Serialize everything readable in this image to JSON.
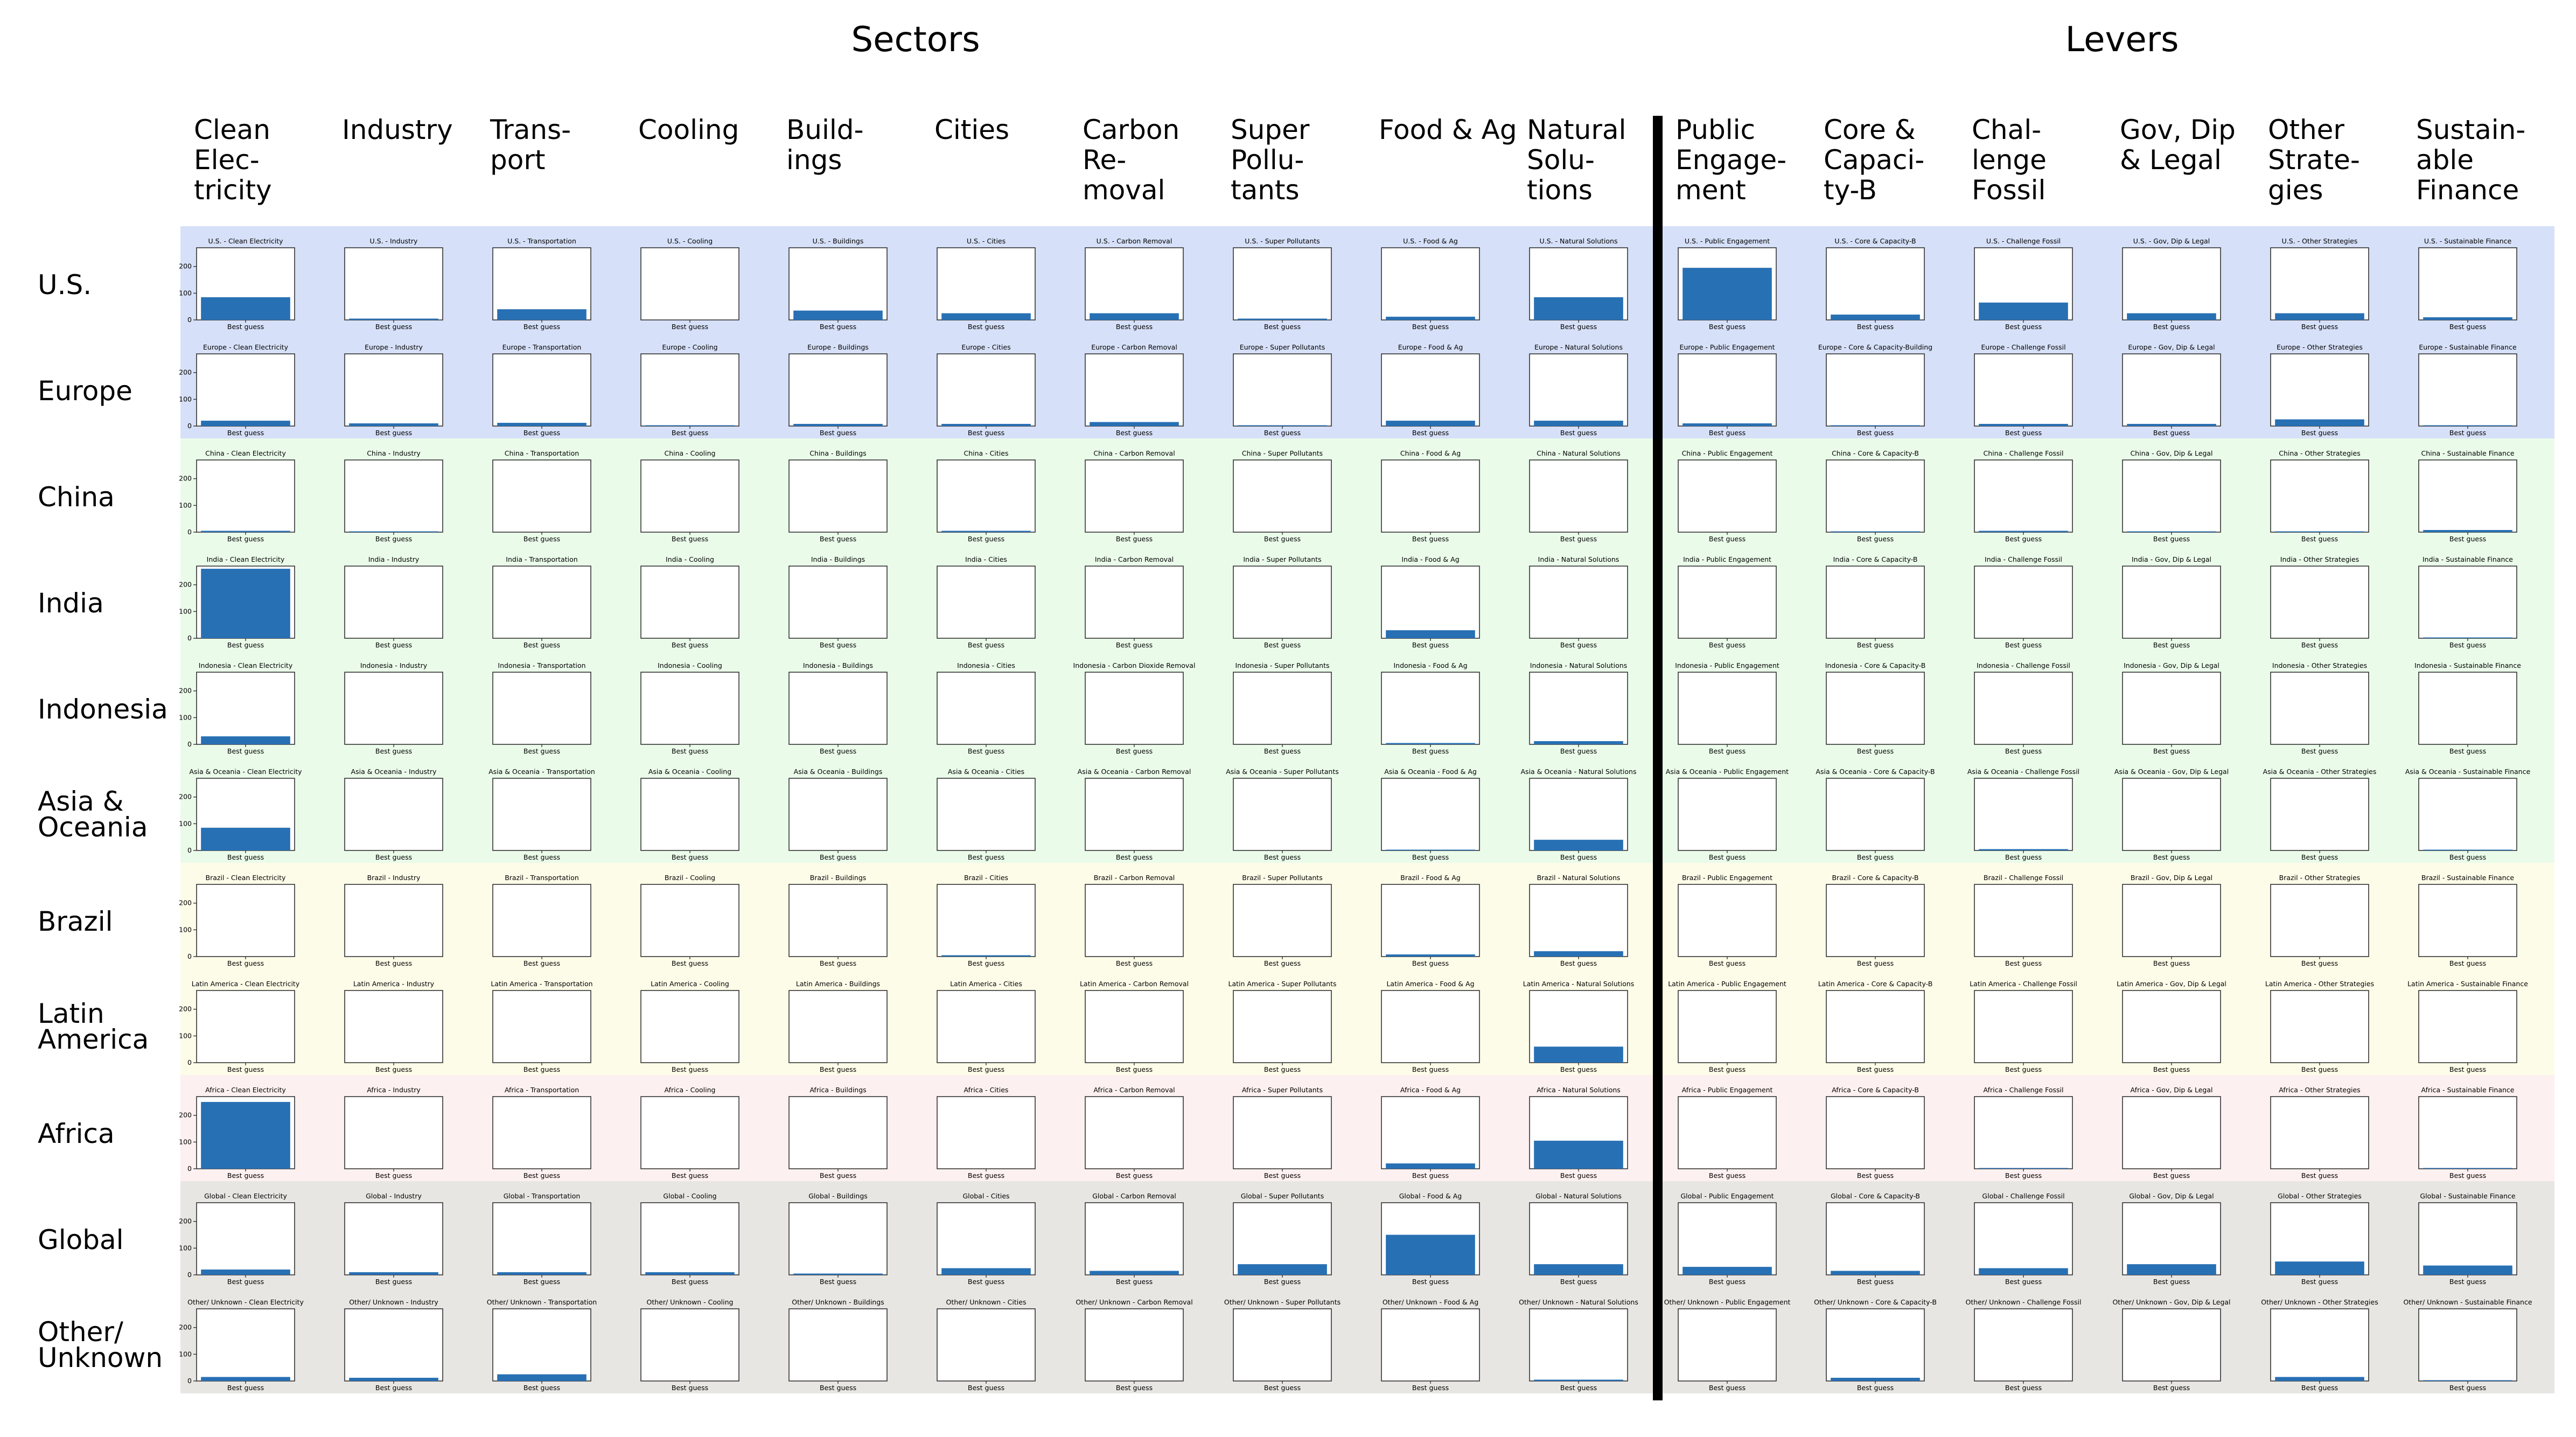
{
  "group_titles": {
    "sectors": "Sectors",
    "levers": "Levers"
  },
  "columns": [
    {
      "header": [
        "Clean",
        "Elec-",
        "tricity"
      ],
      "title": "Clean Electricity"
    },
    {
      "header": [
        "Industry"
      ],
      "title": "Industry"
    },
    {
      "header": [
        "Trans-",
        "port"
      ],
      "title": "Transportation"
    },
    {
      "header": [
        "Cooling"
      ],
      "title": "Cooling"
    },
    {
      "header": [
        "Build-",
        "ings"
      ],
      "title": "Buildings"
    },
    {
      "header": [
        "Cities"
      ],
      "title": "Cities"
    },
    {
      "header": [
        "Carbon",
        "Re-",
        "moval"
      ],
      "title": "Carbon Removal"
    },
    {
      "header": [
        "Super",
        "Pollu-",
        "tants"
      ],
      "title": "Super Pollutants"
    },
    {
      "header": [
        "Food & Ag"
      ],
      "title": "Food & Ag"
    },
    {
      "header": [
        "Natural",
        "Solu-",
        "tions"
      ],
      "title": "Natural Solutions"
    },
    {
      "header": [
        "Public",
        "Engage-",
        "ment"
      ],
      "title": "Public Engagement"
    },
    {
      "header": [
        "Core &",
        "Capaci-",
        "ty-B"
      ],
      "title": "Core & Capacity-B"
    },
    {
      "header": [
        "Chal-",
        "lenge",
        "Fossil"
      ],
      "title": "Challenge Fossil"
    },
    {
      "header": [
        "Gov, Dip",
        "& Legal"
      ],
      "title": "Gov, Dip & Legal"
    },
    {
      "header": [
        "Other",
        "Strate-",
        "gies"
      ],
      "title": "Other Strategies"
    },
    {
      "header": [
        "Sustain-",
        "able",
        "Finance"
      ],
      "title": "Sustainable Finance"
    }
  ],
  "rows": [
    {
      "label": [
        "U.S."
      ],
      "prefix": "U.S.",
      "band": "#d6e0f8"
    },
    {
      "label": [
        "Europe"
      ],
      "prefix": "Europe",
      "band": "#d6e0f8",
      "title_overrides": {
        "11": "Core & Capacity-Building"
      }
    },
    {
      "label": [
        "China"
      ],
      "prefix": "China",
      "band": "#eafbea"
    },
    {
      "label": [
        "India"
      ],
      "prefix": "India",
      "band": "#eafbea"
    },
    {
      "label": [
        "Indonesia"
      ],
      "prefix": "Indonesia",
      "band": "#eafbea",
      "title_overrides": {
        "6": "Carbon Dioxide Removal"
      }
    },
    {
      "label": [
        "Asia &",
        "Oceania"
      ],
      "prefix": "Asia & Oceania",
      "band": "#eafbea"
    },
    {
      "label": [
        "Brazil"
      ],
      "prefix": "Brazil",
      "band": "#fdfce8"
    },
    {
      "label": [
        "Latin",
        "America"
      ],
      "prefix": "Latin America",
      "band": "#fdfce8"
    },
    {
      "label": [
        "Africa"
      ],
      "prefix": "Africa",
      "band": "#fdf0f0"
    },
    {
      "label": [
        "Global"
      ],
      "prefix": "Global",
      "band": "#e8e6e3"
    },
    {
      "label": [
        "Other/",
        "Unknown"
      ],
      "prefix": "Other/ Unknown",
      "band": "#e8e6e3"
    }
  ],
  "chart_data": {
    "type": "bar",
    "category": "Best guess",
    "ylim": [
      0,
      270
    ],
    "yticks": [
      0,
      100,
      200
    ],
    "bar_color": "#2870b4",
    "values": [
      [
        85,
        5,
        40,
        0,
        35,
        25,
        25,
        5,
        12,
        85,
        195,
        20,
        65,
        25,
        25,
        10
      ],
      [
        20,
        10,
        12,
        3,
        8,
        8,
        15,
        3,
        20,
        20,
        10,
        3,
        8,
        8,
        25,
        3
      ],
      [
        5,
        3,
        0,
        0,
        0,
        5,
        0,
        0,
        0,
        0,
        0,
        3,
        5,
        3,
        3,
        8
      ],
      [
        260,
        0,
        0,
        0,
        0,
        0,
        0,
        0,
        30,
        0,
        0,
        0,
        0,
        0,
        0,
        3
      ],
      [
        30,
        0,
        0,
        0,
        0,
        0,
        0,
        0,
        5,
        12,
        0,
        0,
        0,
        0,
        0,
        0
      ],
      [
        85,
        0,
        0,
        0,
        0,
        0,
        0,
        0,
        3,
        40,
        0,
        0,
        5,
        0,
        0,
        3
      ],
      [
        0,
        0,
        0,
        0,
        0,
        5,
        0,
        0,
        8,
        20,
        0,
        0,
        0,
        0,
        0,
        0
      ],
      [
        0,
        0,
        0,
        0,
        0,
        0,
        0,
        0,
        0,
        60,
        0,
        0,
        0,
        0,
        0,
        0
      ],
      [
        250,
        0,
        0,
        0,
        0,
        0,
        0,
        0,
        20,
        105,
        0,
        0,
        3,
        0,
        0,
        3
      ],
      [
        20,
        10,
        10,
        10,
        5,
        25,
        15,
        40,
        150,
        40,
        30,
        15,
        25,
        40,
        50,
        35
      ],
      [
        15,
        12,
        25,
        0,
        0,
        0,
        0,
        0,
        0,
        5,
        0,
        12,
        0,
        0,
        15,
        3
      ]
    ]
  }
}
